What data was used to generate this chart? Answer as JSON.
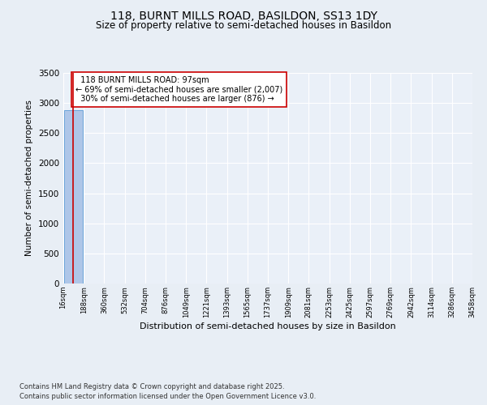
{
  "title_line1": "118, BURNT MILLS ROAD, BASILDON, SS13 1DY",
  "title_line2": "Size of property relative to semi-detached houses in Basildon",
  "xlabel": "Distribution of semi-detached houses by size in Basildon",
  "ylabel": "Number of semi-detached properties",
  "bin_edges": [
    16,
    188,
    360,
    532,
    704,
    876,
    1049,
    1221,
    1393,
    1565,
    1737,
    1909,
    2081,
    2253,
    2425,
    2597,
    2769,
    2942,
    3114,
    3286,
    3458
  ],
  "bar_heights": [
    2883,
    0,
    0,
    0,
    0,
    0,
    0,
    0,
    0,
    0,
    0,
    0,
    0,
    0,
    0,
    0,
    0,
    0,
    0,
    0
  ],
  "bar_color": "#aec6e8",
  "bar_edge_color": "#5b9bd5",
  "property_size": 97,
  "property_label": "118 BURNT MILLS ROAD: 97sqm",
  "pct_smaller": 69,
  "n_smaller": 2007,
  "pct_larger": 30,
  "n_larger": 876,
  "vline_color": "#cc0000",
  "ylim": [
    0,
    3500
  ],
  "yticks": [
    0,
    500,
    1000,
    1500,
    2000,
    2500,
    3000,
    3500
  ],
  "footer_line1": "Contains HM Land Registry data © Crown copyright and database right 2025.",
  "footer_line2": "Contains public sector information licensed under the Open Government Licence v3.0.",
  "bg_color": "#e8eef5",
  "plot_bg_color": "#eaf0f8",
  "grid_color": "#ffffff",
  "annotation_box_color": "#cc0000"
}
